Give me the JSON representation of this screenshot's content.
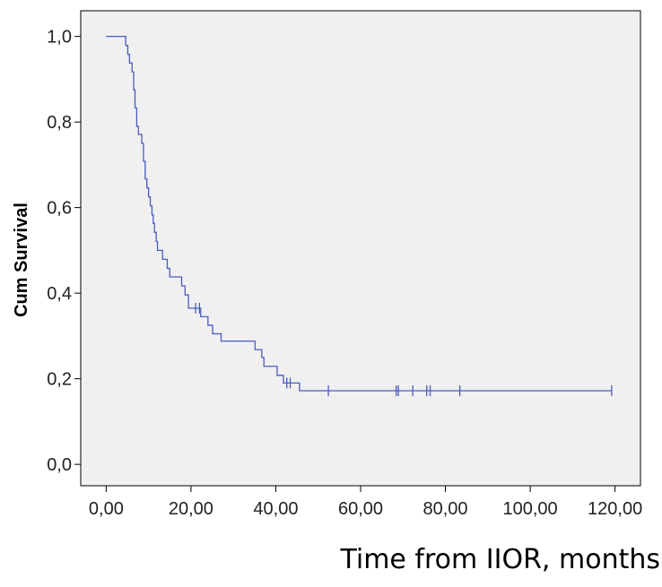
{
  "chart_data": {
    "type": "line",
    "title": "",
    "xlabel": "Time from IIOR, months",
    "ylabel": "Cum Survival",
    "xlim": [
      -6,
      126
    ],
    "ylim": [
      -0.05,
      1.06
    ],
    "xticks": [
      0,
      20,
      40,
      60,
      80,
      100,
      120
    ],
    "xtick_labels": [
      "0,00",
      "20,00",
      "40,00",
      "60,00",
      "80,00",
      "100,00",
      "120,00"
    ],
    "yticks": [
      0,
      0.2,
      0.4,
      0.6,
      0.8,
      1.0
    ],
    "ytick_labels": [
      "0,0",
      "0,2",
      "0,4",
      "0,6",
      "0,8",
      "1,0"
    ],
    "grid": false,
    "series": [
      {
        "step": [
          [
            0,
            1.0
          ],
          [
            4.6,
            1.0
          ],
          [
            4.6,
            0.979
          ],
          [
            5.1,
            0.979
          ],
          [
            5.1,
            0.958
          ],
          [
            5.5,
            0.958
          ],
          [
            5.5,
            0.938
          ],
          [
            6.1,
            0.938
          ],
          [
            6.1,
            0.917
          ],
          [
            6.5,
            0.917
          ],
          [
            6.5,
            0.875
          ],
          [
            6.8,
            0.875
          ],
          [
            6.8,
            0.833
          ],
          [
            7.2,
            0.833
          ],
          [
            7.2,
            0.79
          ],
          [
            7.6,
            0.79
          ],
          [
            7.6,
            0.771
          ],
          [
            8.4,
            0.771
          ],
          [
            8.4,
            0.75
          ],
          [
            8.8,
            0.75
          ],
          [
            8.8,
            0.708
          ],
          [
            9.2,
            0.708
          ],
          [
            9.2,
            0.667
          ],
          [
            9.6,
            0.667
          ],
          [
            9.6,
            0.646
          ],
          [
            10.0,
            0.646
          ],
          [
            10.0,
            0.625
          ],
          [
            10.4,
            0.625
          ],
          [
            10.4,
            0.604
          ],
          [
            10.8,
            0.604
          ],
          [
            10.8,
            0.583
          ],
          [
            11.1,
            0.583
          ],
          [
            11.1,
            0.563
          ],
          [
            11.4,
            0.563
          ],
          [
            11.4,
            0.542
          ],
          [
            11.8,
            0.542
          ],
          [
            11.8,
            0.521
          ],
          [
            12.1,
            0.521
          ],
          [
            12.1,
            0.5
          ],
          [
            13.3,
            0.5
          ],
          [
            13.3,
            0.479
          ],
          [
            14.4,
            0.479
          ],
          [
            14.4,
            0.458
          ],
          [
            15.0,
            0.458
          ],
          [
            15.0,
            0.438
          ],
          [
            17.8,
            0.438
          ],
          [
            17.8,
            0.417
          ],
          [
            18.6,
            0.417
          ],
          [
            18.6,
            0.396
          ],
          [
            19.4,
            0.396
          ],
          [
            19.4,
            0.365
          ],
          [
            22.3,
            0.365
          ],
          [
            22.3,
            0.345
          ],
          [
            24.0,
            0.345
          ],
          [
            24.0,
            0.325
          ],
          [
            25.1,
            0.325
          ],
          [
            25.1,
            0.305
          ],
          [
            27.1,
            0.305
          ],
          [
            27.1,
            0.288
          ],
          [
            35.1,
            0.288
          ],
          [
            35.1,
            0.268
          ],
          [
            36.7,
            0.268
          ],
          [
            36.7,
            0.25
          ],
          [
            37.2,
            0.25
          ],
          [
            37.2,
            0.229
          ],
          [
            40.3,
            0.229
          ],
          [
            40.3,
            0.208
          ],
          [
            41.8,
            0.208
          ],
          [
            41.8,
            0.19
          ],
          [
            45.6,
            0.19
          ],
          [
            45.6,
            0.172
          ],
          [
            119.2,
            0.172
          ]
        ],
        "censored": [
          [
            21.1,
            0.365
          ],
          [
            22.0,
            0.365
          ],
          [
            42.6,
            0.19
          ],
          [
            43.4,
            0.19
          ],
          [
            52.4,
            0.172
          ],
          [
            68.4,
            0.172
          ],
          [
            68.9,
            0.172
          ],
          [
            72.3,
            0.172
          ],
          [
            75.6,
            0.172
          ],
          [
            76.4,
            0.172
          ],
          [
            83.4,
            0.172
          ],
          [
            119.2,
            0.172
          ]
        ]
      }
    ],
    "colors": {
      "series": "#4a5bbd",
      "plot_background": "#f0f0f0",
      "frame": "#000000"
    }
  }
}
